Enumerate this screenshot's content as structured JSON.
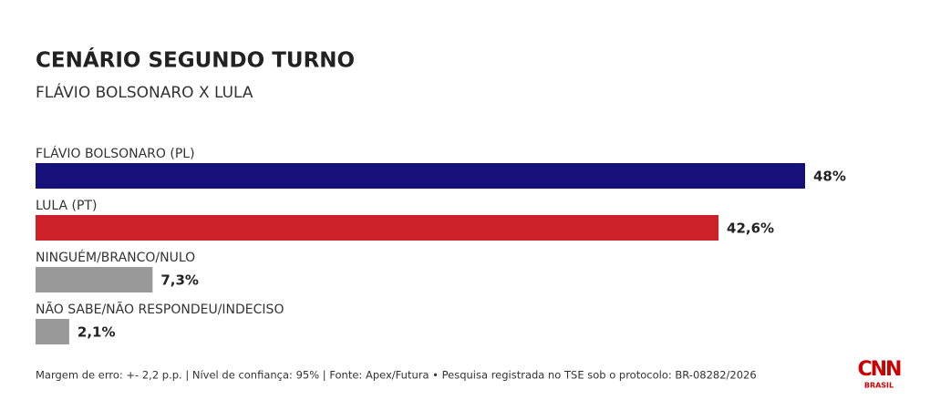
{
  "chart_data": {
    "type": "bar",
    "orientation": "horizontal",
    "title": "CENÁRIO SEGUNDO TURNO",
    "subtitle": "FLÁVIO BOLSONARO X LULA",
    "categories": [
      "FLÁVIO BOLSONARO (PL)",
      "LULA (PT)",
      "NINGUÉM/BRANCO/NULO",
      "NÃO SABE/NÃO RESPONDEU/INDECISO"
    ],
    "values": [
      48,
      42.6,
      7.3,
      2.1
    ],
    "value_labels": [
      "48%",
      "42,6%",
      "7,3%",
      "2,1%"
    ],
    "colors": [
      "#16107a",
      "#cc2128",
      "#999999",
      "#999999"
    ],
    "footnote": "Margem de erro: +- 2,2 p.p. | Nível de confiança: 95% | Fonte: Apex/Futura • Pesquisa registrada no TSE sob o protocolo: BR-08282/2026",
    "logo": {
      "text": "CNN",
      "subtext": "BRASIL"
    }
  }
}
